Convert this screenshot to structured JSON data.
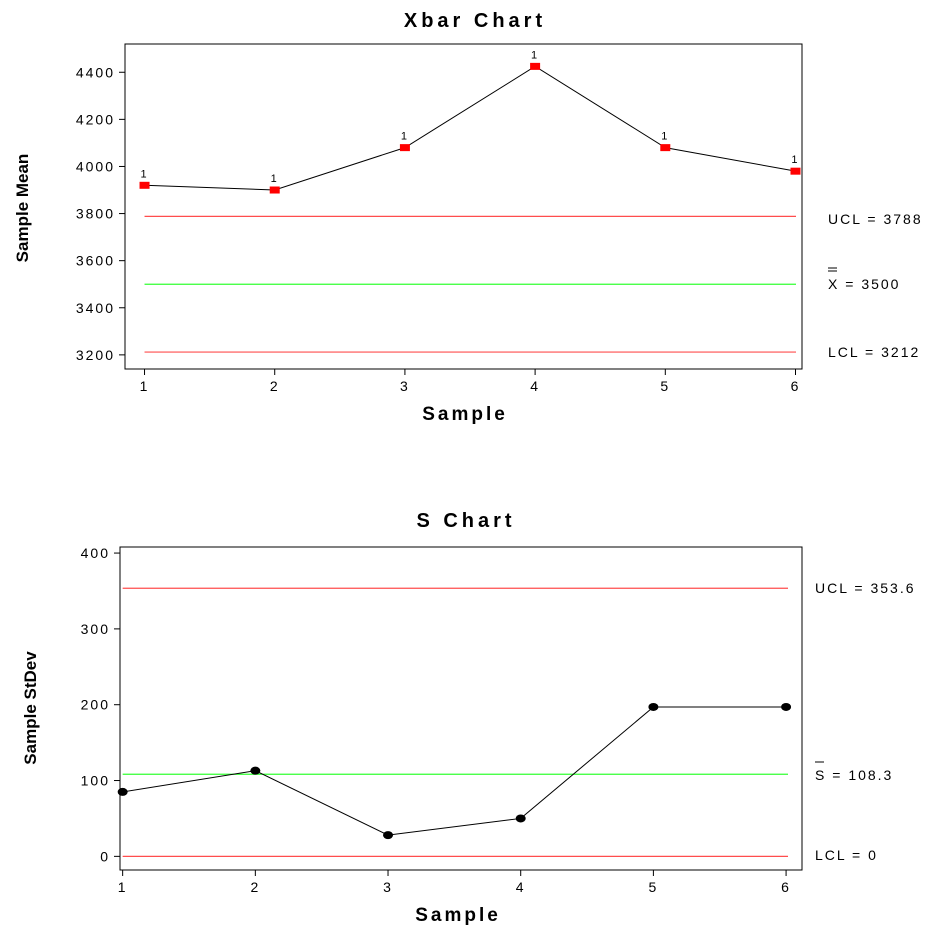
{
  "chart_data": [
    {
      "type": "line",
      "title": "Xbar Chart",
      "xlabel": "Sample",
      "ylabel": "Sample Mean",
      "x": [
        1,
        2,
        3,
        4,
        5,
        6
      ],
      "values": [
        3920,
        3900,
        4080,
        4425,
        4080,
        3980
      ],
      "out_of_control_flags": [
        "1",
        "1",
        "1",
        "1",
        "1",
        "1"
      ],
      "xlim": [
        0.85,
        6.05
      ],
      "ylim": [
        3140,
        4520
      ],
      "yticks": [
        3200,
        3400,
        3600,
        3800,
        4000,
        4200,
        4400
      ],
      "yticks_text": [
        "3200",
        "3400",
        "3600",
        "3800",
        "4000",
        "4200",
        "4400"
      ],
      "xticks_text": [
        "1",
        "2",
        "3",
        "4",
        "5",
        "6"
      ],
      "point_color": "#ff0000",
      "line_color": "#000000",
      "limits": [
        {
          "key": "ucl",
          "value": 3788,
          "color": "#ff4d4d",
          "prefix": "UCL",
          "value_text": "3788"
        },
        {
          "key": "center",
          "value": 3500,
          "color": "#33ff33",
          "prefix": "X",
          "value_text": "3500"
        },
        {
          "key": "lcl",
          "value": 3212,
          "color": "#ff4d4d",
          "prefix": "LCL",
          "value_text": "3212"
        }
      ]
    },
    {
      "type": "line",
      "title": "S Chart",
      "xlabel": "Sample",
      "ylabel": "Sample StDev",
      "x": [
        1,
        2,
        3,
        4,
        5,
        6
      ],
      "values": [
        85,
        113,
        28,
        50,
        197,
        197
      ],
      "xlim": [
        0.98,
        6.12
      ],
      "ylim": [
        -18,
        408
      ],
      "yticks": [
        0,
        100,
        200,
        300,
        400
      ],
      "yticks_text": [
        "0",
        "100",
        "200",
        "300",
        "400"
      ],
      "xticks_text": [
        "1",
        "2",
        "3",
        "4",
        "5",
        "6"
      ],
      "point_color": "#000000",
      "line_color": "#000000",
      "limits": [
        {
          "key": "ucl",
          "value": 353.6,
          "color": "#ff4d4d",
          "prefix": "UCL",
          "value_text": "353.6"
        },
        {
          "key": "center",
          "value": 108.3,
          "color": "#33ff33",
          "prefix": "S",
          "value_text": "108.3"
        },
        {
          "key": "lcl",
          "value": 0,
          "color": "#ff4d4d",
          "prefix": "LCL",
          "value_text": "0"
        }
      ]
    }
  ]
}
